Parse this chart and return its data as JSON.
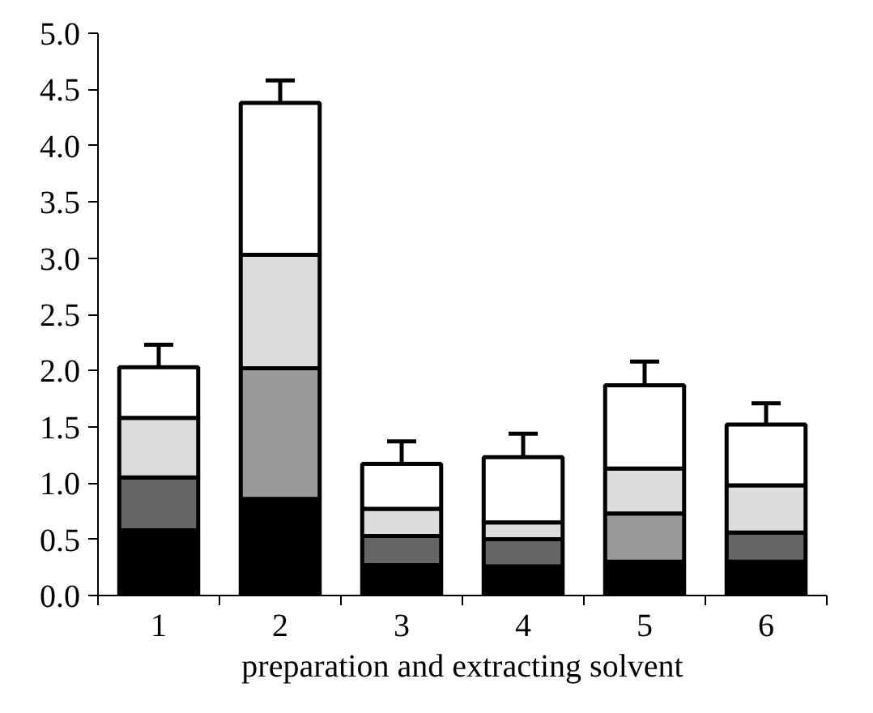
{
  "chart_data": {
    "type": "bar",
    "stacked": true,
    "xlabel": "preparation and extracting solvent",
    "categories": [
      "1",
      "2",
      "3",
      "4",
      "5",
      "6"
    ],
    "ylim": [
      0,
      5
    ],
    "yticks": [
      {
        "value": 0,
        "label": "0.0"
      },
      {
        "value": 0.5,
        "label": "0.5"
      },
      {
        "value": 1,
        "label": "1.0"
      },
      {
        "value": 1.5,
        "label": "1.5"
      },
      {
        "value": 2,
        "label": "2.0"
      },
      {
        "value": 2.5,
        "label": "2.5"
      },
      {
        "value": 3,
        "label": "3.0"
      },
      {
        "value": 3.5,
        "label": "3.5"
      },
      {
        "value": 4,
        "label": "4.0"
      },
      {
        "value": 4.5,
        "label": "4.5"
      },
      {
        "value": 5,
        "label": "5.0"
      }
    ],
    "grid": false,
    "series": [
      {
        "color": "#000000",
        "values": [
          0.58,
          0.86,
          0.27,
          0.26,
          0.3,
          0.3
        ]
      },
      {
        "colors": [
          "#666666",
          "#999999",
          "#666666",
          "#666666",
          "#999999",
          "#666666"
        ],
        "values": [
          0.47,
          1.16,
          0.26,
          0.24,
          0.43,
          0.26
        ]
      },
      {
        "color": "#dddddd",
        "values": [
          0.53,
          1.01,
          0.24,
          0.15,
          0.4,
          0.42
        ]
      },
      {
        "color": "#ffffff",
        "values": [
          0.45,
          1.35,
          0.4,
          0.58,
          0.74,
          0.54
        ],
        "errors": [
          [
            2.03,
            2.23
          ],
          [
            4.38,
            4.58
          ],
          [
            1.17,
            1.37
          ],
          [
            1.23,
            1.44
          ],
          [
            1.87,
            2.08
          ],
          [
            1.52,
            1.71
          ]
        ]
      }
    ]
  }
}
